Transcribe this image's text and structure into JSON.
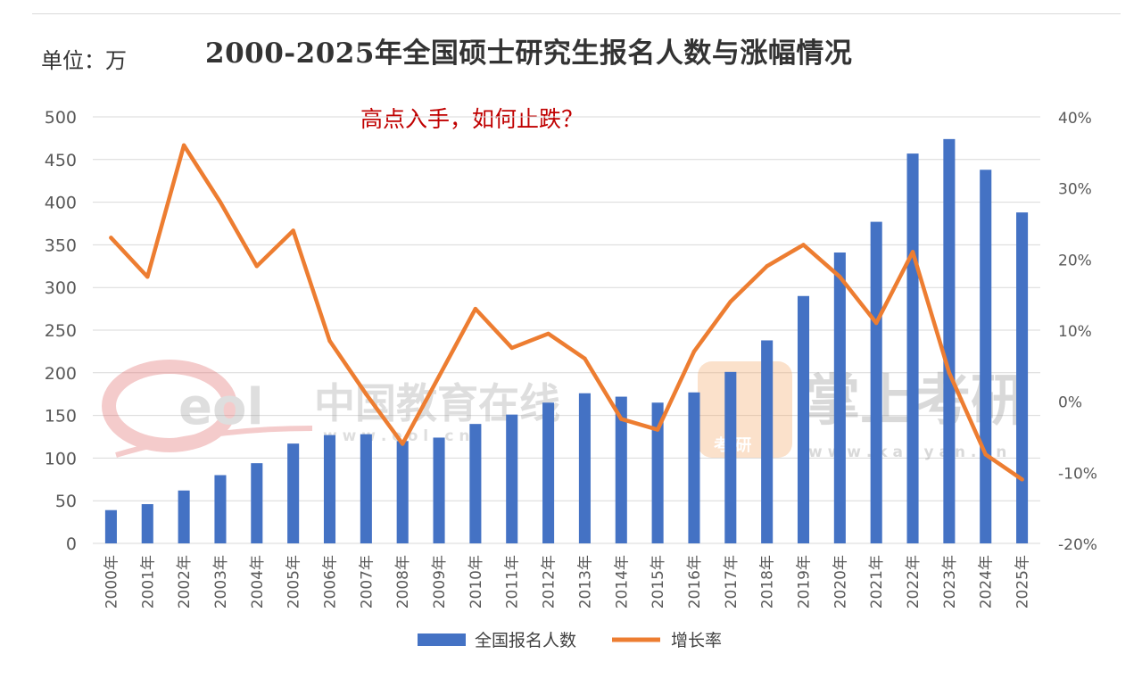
{
  "header": {
    "unit_label": "单位：万",
    "title": "2000-2025年全国硕士研究生报名人数与涨幅情况",
    "annotation": "高点入手，如何止跌？"
  },
  "watermarks": {
    "left_logo": "eol",
    "left_name": "中国教育在线",
    "left_url": "w w w . e o l . c n",
    "right_name": "掌上考研",
    "right_url": "w w w . k a o y a n . c n",
    "right_badge": "考 研"
  },
  "colors": {
    "bar": "#4472c4",
    "line": "#ed7d31",
    "grid": "#d9d9d9"
  },
  "chart_data": {
    "type": "bar",
    "categories": [
      "2000年",
      "2001年",
      "2002年",
      "2003年",
      "2004年",
      "2005年",
      "2006年",
      "2007年",
      "2008年",
      "2009年",
      "2010年",
      "2011年",
      "2012年",
      "2013年",
      "2014年",
      "2015年",
      "2016年",
      "2017年",
      "2018年",
      "2019年",
      "2020年",
      "2021年",
      "2022年",
      "2023年",
      "2024年",
      "2025年"
    ],
    "series": [
      {
        "name": "全国报名人数",
        "type": "bar",
        "axis": "left",
        "values": [
          39,
          46,
          62,
          80,
          94,
          117,
          127,
          128,
          120,
          124,
          140,
          151,
          165,
          176,
          172,
          165,
          177,
          201,
          238,
          290,
          341,
          377,
          457,
          474,
          438,
          388
        ]
      },
      {
        "name": "增长率",
        "type": "line",
        "axis": "right",
        "values": [
          23,
          17.5,
          36,
          28,
          19,
          24,
          8.5,
          1,
          -6,
          3.5,
          13,
          7.5,
          9.5,
          6,
          -2.5,
          -4,
          7,
          14,
          19,
          22,
          17.5,
          11,
          21,
          4,
          -7.5,
          -11
        ]
      }
    ],
    "y_left": {
      "ticks": [
        "0",
        "50",
        "100",
        "150",
        "200",
        "250",
        "300",
        "350",
        "400",
        "450",
        "500"
      ],
      "range": [
        0,
        500
      ]
    },
    "y_right": {
      "ticks": [
        "-20%",
        "-10%",
        "0%",
        "10%",
        "20%",
        "30%",
        "40%"
      ],
      "range": [
        -20,
        40
      ]
    },
    "grid": true,
    "legend": "bottom"
  }
}
